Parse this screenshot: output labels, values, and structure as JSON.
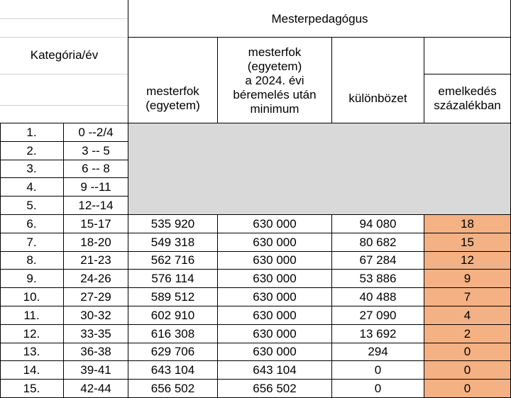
{
  "table": {
    "group_header": "Mesterpedagógus",
    "category_header": "Kategória/év",
    "columns": [
      "mesterfok\n(egyetem)",
      "mesterfok\n(egyetem)\na 2024. évi\nbéremelés után\nminimum",
      "különbözet",
      "emelkedés\nszázalékban"
    ],
    "rows": [
      {
        "num": "1.",
        "years": "0 --2/4",
        "base": "",
        "minimum": "",
        "diff": "",
        "pct": ""
      },
      {
        "num": "2.",
        "years": "3 -- 5",
        "base": "",
        "minimum": "",
        "diff": "",
        "pct": ""
      },
      {
        "num": "3.",
        "years": "6 -- 8",
        "base": "",
        "minimum": "",
        "diff": "",
        "pct": ""
      },
      {
        "num": "4.",
        "years": "9 --11",
        "base": "",
        "minimum": "",
        "diff": "",
        "pct": ""
      },
      {
        "num": "5.",
        "years": "12--14",
        "base": "",
        "minimum": "",
        "diff": "",
        "pct": ""
      },
      {
        "num": "6.",
        "years": "15-17",
        "base": "535 920",
        "minimum": "630 000",
        "diff": "94 080",
        "pct": "18"
      },
      {
        "num": "7.",
        "years": "18-20",
        "base": "549 318",
        "minimum": "630 000",
        "diff": "80 682",
        "pct": "15"
      },
      {
        "num": "8.",
        "years": "21-23",
        "base": "562 716",
        "minimum": "630 000",
        "diff": "67 284",
        "pct": "12"
      },
      {
        "num": "9.",
        "years": "24-26",
        "base": "576 114",
        "minimum": "630 000",
        "diff": "53 886",
        "pct": "9"
      },
      {
        "num": "10.",
        "years": "27-29",
        "base": "589 512",
        "minimum": "630 000",
        "diff": "40 488",
        "pct": "7"
      },
      {
        "num": "11.",
        "years": "30-32",
        "base": "602 910",
        "minimum": "630 000",
        "diff": "27 090",
        "pct": "4"
      },
      {
        "num": "12.",
        "years": "33-35",
        "base": "616 308",
        "minimum": "630 000",
        "diff": "13 692",
        "pct": "2"
      },
      {
        "num": "13.",
        "years": "36-38",
        "base": "629 706",
        "minimum": "630 000",
        "diff": "294",
        "pct": "0"
      },
      {
        "num": "14.",
        "years": "39-41",
        "base": "643 104",
        "minimum": "643 104",
        "diff": "0",
        "pct": "0"
      },
      {
        "num": "15.",
        "years": "42-44",
        "base": "656 502",
        "minimum": "656 502",
        "diff": "0",
        "pct": "0"
      }
    ],
    "colors": {
      "empty_fill": "#d9d9d9",
      "percent_fill": "#f4b183",
      "border": "#000000"
    }
  }
}
